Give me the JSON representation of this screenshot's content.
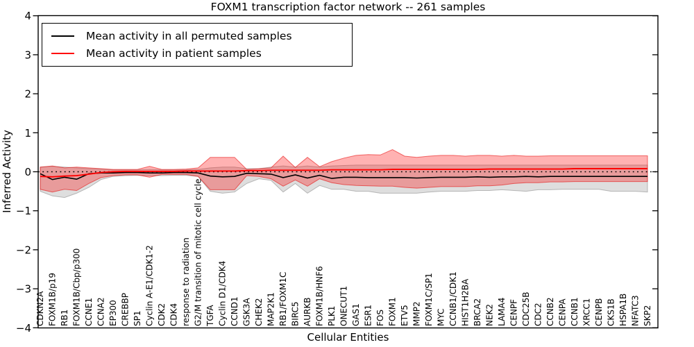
{
  "title": "FOXM1 transcription factor network -- 261 samples",
  "accent_colors": {
    "patient": "#ff0000",
    "permuted": "#000000",
    "red_band": "rgba(255,0,0,0.30)",
    "gray_band": "rgba(125,125,125,0.25)"
  },
  "chart_data": {
    "type": "line",
    "title": "FOXM1 transcription factor network -- 261 samples",
    "xlabel": "Cellular Entities",
    "ylabel": "Inferred Activity",
    "ylim": [
      -4,
      4
    ],
    "yticks": [
      4,
      3,
      2,
      1,
      0,
      -1,
      -2,
      -3,
      -4
    ],
    "grid": false,
    "legend_position": "upper left",
    "reference_line": {
      "y": 0,
      "style": "dotted",
      "color": "#000000"
    },
    "categories": [
      "CDKN2A",
      "FOXM1B/p19",
      "RB1",
      "FOXM1B/Cbp/p300",
      "CCNE1",
      "CCNA2",
      "EP300",
      "CREBBP",
      "SP1",
      "Cyclin A-E1/CDK1-2",
      "CDK2",
      "CDK4",
      "response to radiation",
      "G2/M transition of mitotic cell cycle",
      "TGFA",
      "Cyclin D1/CDK4",
      "CCND1",
      "GSK3A",
      "CHEK2",
      "MAP2K1",
      "RB1/FOXM1C",
      "BIRC5",
      "AURKB",
      "FOXM1B/HNF6",
      "PLK1",
      "ONECUT1",
      "GAS1",
      "ESR1",
      "FOS",
      "FOXM1",
      "ETV5",
      "MMP2",
      "FOXM1C/SP1",
      "MYC",
      "CCNB1/CDK1",
      "HIST1H2BA",
      "BRCA2",
      "NEK2",
      "LAMA4",
      "CENPF",
      "CDC25B",
      "CDC2",
      "CCNB2",
      "CENPA",
      "CCNB1",
      "XRCC1",
      "CENPB",
      "CKS1B",
      "HSPA1B",
      "NFATC3",
      "SKP2"
    ],
    "series": [
      {
        "name": "Mean activity in all permuted samples",
        "color": "#000000",
        "values": [
          -0.05,
          -0.2,
          -0.14,
          -0.19,
          -0.05,
          -0.03,
          -0.03,
          -0.02,
          -0.02,
          -0.03,
          -0.03,
          -0.02,
          -0.02,
          -0.03,
          -0.11,
          -0.13,
          -0.12,
          -0.04,
          -0.05,
          -0.06,
          -0.15,
          -0.08,
          -0.16,
          -0.09,
          -0.17,
          -0.14,
          -0.14,
          -0.15,
          -0.15,
          -0.15,
          -0.15,
          -0.16,
          -0.15,
          -0.14,
          -0.14,
          -0.14,
          -0.13,
          -0.14,
          -0.13,
          -0.13,
          -0.12,
          -0.13,
          -0.12,
          -0.12,
          -0.12,
          -0.12,
          -0.12,
          -0.12,
          -0.12,
          -0.12,
          -0.12
        ]
      },
      {
        "name": "Mean activity in patient samples",
        "color": "#ff0000",
        "values": [
          -0.12,
          -0.13,
          -0.11,
          -0.1,
          -0.06,
          -0.02,
          0.0,
          0.01,
          0.01,
          0.01,
          0.01,
          0.01,
          0.02,
          0.02,
          0.02,
          0.02,
          0.02,
          0.03,
          0.03,
          0.04,
          0.04,
          0.04,
          0.04,
          0.04,
          0.05,
          0.05,
          0.05,
          0.05,
          0.05,
          0.06,
          0.06,
          0.06,
          0.06,
          0.06,
          0.06,
          0.06,
          0.06,
          0.07,
          0.07,
          0.07,
          0.07,
          0.07,
          0.07,
          0.07,
          0.08,
          0.08,
          0.08,
          0.08,
          0.08,
          0.08,
          0.08
        ]
      }
    ],
    "bands": [
      {
        "name": "permuted-samples-band",
        "color": "gray",
        "upper": [
          0.12,
          0.14,
          0.12,
          0.1,
          0.08,
          0.07,
          0.05,
          0.05,
          0.05,
          0.06,
          0.05,
          0.05,
          0.05,
          0.06,
          0.1,
          0.12,
          0.12,
          0.08,
          0.08,
          0.12,
          0.15,
          0.12,
          0.15,
          0.12,
          0.15,
          0.16,
          0.17,
          0.17,
          0.17,
          0.17,
          0.17,
          0.17,
          0.17,
          0.17,
          0.17,
          0.17,
          0.17,
          0.17,
          0.17,
          0.17,
          0.17,
          0.17,
          0.17,
          0.17,
          0.17,
          0.17,
          0.17,
          0.17,
          0.17,
          0.17,
          0.17
        ],
        "lower": [
          -0.5,
          -0.62,
          -0.66,
          -0.55,
          -0.4,
          -0.2,
          -0.12,
          -0.1,
          -0.09,
          -0.1,
          -0.1,
          -0.09,
          -0.09,
          -0.12,
          -0.5,
          -0.55,
          -0.52,
          -0.3,
          -0.18,
          -0.22,
          -0.52,
          -0.3,
          -0.55,
          -0.35,
          -0.45,
          -0.45,
          -0.5,
          -0.5,
          -0.55,
          -0.55,
          -0.55,
          -0.55,
          -0.52,
          -0.5,
          -0.5,
          -0.5,
          -0.48,
          -0.48,
          -0.46,
          -0.48,
          -0.5,
          -0.46,
          -0.46,
          -0.45,
          -0.45,
          -0.45,
          -0.45,
          -0.5,
          -0.5,
          -0.5,
          -0.52
        ]
      },
      {
        "name": "patient-samples-band",
        "color": "red",
        "upper": [
          0.12,
          0.15,
          0.1,
          0.12,
          0.1,
          0.08,
          0.06,
          0.06,
          0.06,
          0.14,
          0.06,
          0.06,
          0.07,
          0.1,
          0.37,
          0.37,
          0.37,
          0.06,
          0.08,
          0.1,
          0.4,
          0.11,
          0.37,
          0.13,
          0.26,
          0.35,
          0.42,
          0.44,
          0.43,
          0.57,
          0.4,
          0.37,
          0.4,
          0.42,
          0.42,
          0.4,
          0.42,
          0.42,
          0.4,
          0.42,
          0.4,
          0.4,
          0.41,
          0.41,
          0.41,
          0.41,
          0.41,
          0.41,
          0.41,
          0.41,
          0.41
        ],
        "lower": [
          -0.45,
          -0.52,
          -0.45,
          -0.48,
          -0.3,
          -0.15,
          -0.1,
          -0.08,
          -0.08,
          -0.14,
          -0.07,
          -0.07,
          -0.07,
          -0.12,
          -0.46,
          -0.46,
          -0.46,
          -0.1,
          -0.12,
          -0.18,
          -0.37,
          -0.21,
          -0.37,
          -0.18,
          -0.28,
          -0.33,
          -0.35,
          -0.36,
          -0.37,
          -0.37,
          -0.4,
          -0.42,
          -0.4,
          -0.38,
          -0.38,
          -0.38,
          -0.36,
          -0.36,
          -0.34,
          -0.3,
          -0.28,
          -0.28,
          -0.26,
          -0.26,
          -0.25,
          -0.25,
          -0.25,
          -0.25,
          -0.25,
          -0.25,
          -0.25
        ]
      }
    ]
  }
}
